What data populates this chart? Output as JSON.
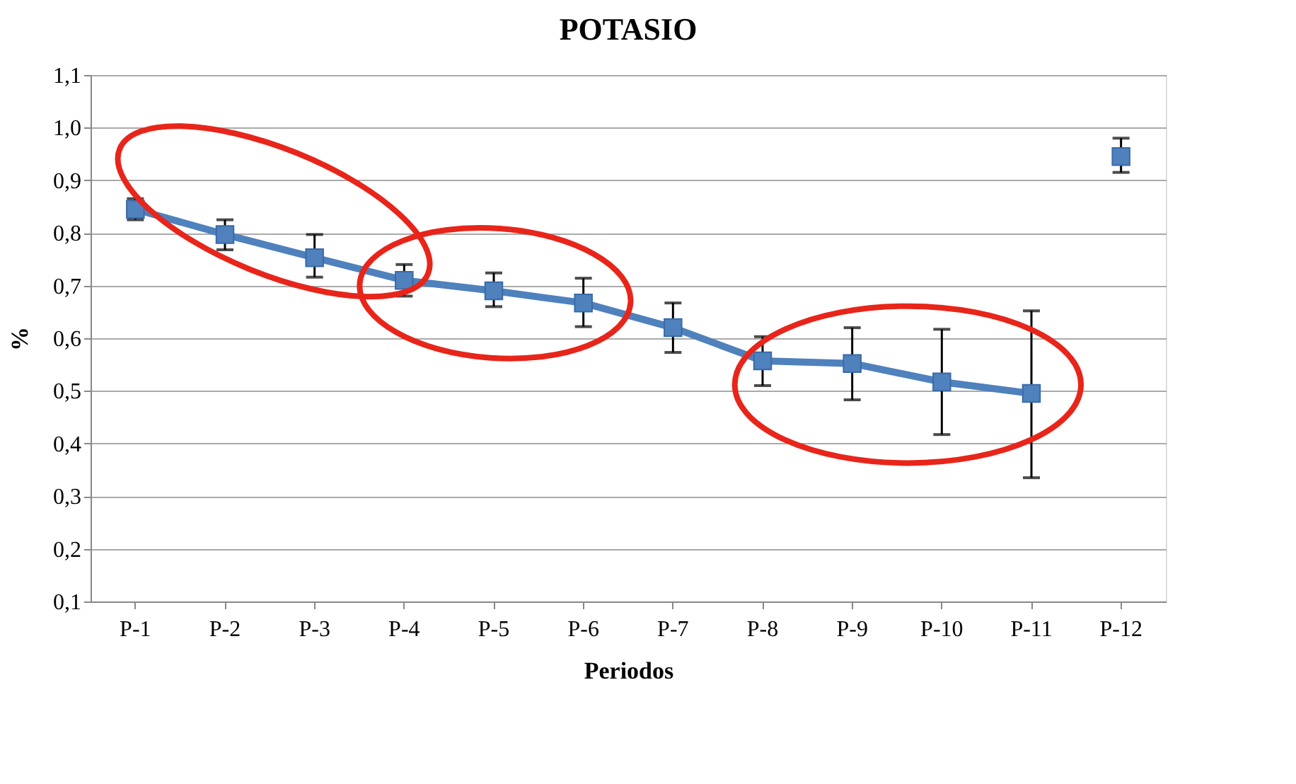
{
  "chart_data": {
    "type": "line",
    "title": "POTASIO",
    "xlabel": "Periodos",
    "ylabel": "%",
    "categories": [
      "P-1",
      "P-2",
      "P-3",
      "P-4",
      "P-5",
      "P-6",
      "P-7",
      "P-8",
      "P-9",
      "P-10",
      "P-11",
      "P-12"
    ],
    "series": [
      {
        "color": "#4f81bd",
        "values": [
          0.845,
          0.797,
          0.753,
          0.71,
          0.69,
          0.667,
          0.62,
          0.557,
          0.552,
          0.517,
          0.495,
          null
        ],
        "errors": [
          [
            0.825,
            0.865
          ],
          [
            0.768,
            0.825
          ],
          [
            0.716,
            0.797
          ],
          [
            0.68,
            0.74
          ],
          [
            0.66,
            0.724
          ],
          [
            0.622,
            0.714
          ],
          [
            0.573,
            0.667
          ],
          [
            0.51,
            0.603
          ],
          [
            0.483,
            0.62
          ],
          [
            0.417,
            0.617
          ],
          [
            0.335,
            0.652
          ],
          null
        ]
      },
      {
        "type": "scatter",
        "color": "#4f81bd",
        "values": [
          null,
          null,
          null,
          null,
          null,
          null,
          null,
          null,
          null,
          null,
          null,
          0.945
        ],
        "errors": [
          null,
          null,
          null,
          null,
          null,
          null,
          null,
          null,
          null,
          null,
          null,
          [
            0.915,
            0.98
          ]
        ]
      }
    ],
    "ylim": [
      0.1,
      1.1
    ],
    "yticks": [
      {
        "value": 0.1,
        "label": "0,1"
      },
      {
        "value": 0.2,
        "label": "0,2"
      },
      {
        "value": 0.3,
        "label": "0,3"
      },
      {
        "value": 0.4,
        "label": "0,4"
      },
      {
        "value": 0.5,
        "label": "0,5"
      },
      {
        "value": 0.6,
        "label": "0,6"
      },
      {
        "value": 0.7,
        "label": "0,7"
      },
      {
        "value": 0.8,
        "label": "0,8"
      },
      {
        "value": 0.9,
        "label": "0,9"
      },
      {
        "value": 1.0,
        "label": "1,0"
      },
      {
        "value": 1.1,
        "label": "1,1"
      }
    ],
    "grid": "y",
    "marker": "square",
    "line_style": "solid",
    "legend": false
  }
}
